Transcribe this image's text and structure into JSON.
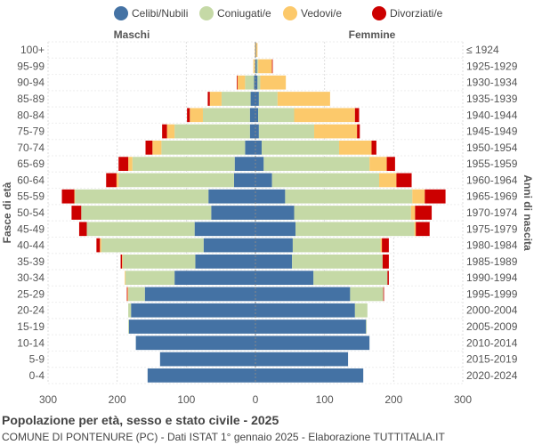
{
  "chart_data": {
    "type": "bar",
    "orientation": "horizontal-population-pyramid",
    "legend": {
      "placement": "top",
      "items": [
        {
          "label": "Celibi/Nubili",
          "color": "#4472a4"
        },
        {
          "label": "Coniugati/e",
          "color": "#c5d9a6"
        },
        {
          "label": "Vedovi/e",
          "color": "#fcc96b"
        },
        {
          "label": "Divorziati/e",
          "color": "#cc0000"
        }
      ]
    },
    "left_label": "Maschi",
    "right_label": "Femmine",
    "ylabel_left": "Fasce di età",
    "ylabel_right": "Anni di nascita",
    "xlim": [
      -300,
      300
    ],
    "x_ticks": [
      -300,
      -200,
      -100,
      0,
      100,
      200,
      300
    ],
    "x_tick_labels": [
      "300",
      "200",
      "100",
      "0",
      "100",
      "200",
      "300"
    ],
    "grid": true,
    "categories": [
      "100+",
      "95-99",
      "90-94",
      "85-89",
      "80-84",
      "75-79",
      "70-74",
      "65-69",
      "60-64",
      "55-59",
      "50-54",
      "45-49",
      "40-44",
      "35-39",
      "30-34",
      "25-29",
      "20-24",
      "15-19",
      "10-14",
      "5-9",
      "0-4"
    ],
    "birth_years": [
      "≤ 1924",
      "1925-1929",
      "1930-1934",
      "1935-1939",
      "1940-1944",
      "1945-1949",
      "1950-1954",
      "1955-1959",
      "1960-1964",
      "1965-1969",
      "1970-1974",
      "1975-1979",
      "1980-1984",
      "1985-1989",
      "1990-1994",
      "1995-1999",
      "2000-2004",
      "2005-2009",
      "2010-2014",
      "2015-2019",
      "2020-2024"
    ],
    "series_male": [
      {
        "name": "Celibi/Nubili",
        "values": [
          0,
          0,
          2,
          7,
          8,
          8,
          15,
          30,
          31,
          68,
          64,
          88,
          75,
          87,
          117,
          160,
          180,
          183,
          173,
          138,
          156
        ]
      },
      {
        "name": "Coniugati/e",
        "values": [
          0,
          1,
          13,
          42,
          68,
          109,
          121,
          148,
          167,
          193,
          188,
          156,
          148,
          105,
          71,
          24,
          4,
          1,
          0,
          0,
          0
        ]
      },
      {
        "name": "Vedovi/e",
        "values": [
          1,
          2,
          11,
          17,
          19,
          11,
          13,
          6,
          3,
          1,
          0,
          0,
          2,
          1,
          1,
          1,
          0,
          0,
          0,
          0,
          0
        ]
      },
      {
        "name": "Divorziati/e",
        "values": [
          0,
          0,
          1,
          3,
          4,
          7,
          10,
          14,
          15,
          18,
          14,
          11,
          5,
          2,
          0,
          1,
          0,
          0,
          0,
          0,
          0
        ]
      }
    ],
    "series_female": [
      {
        "name": "Celibi/Nubili",
        "values": [
          1,
          2,
          3,
          5,
          4,
          5,
          9,
          12,
          24,
          43,
          56,
          58,
          54,
          53,
          84,
          137,
          144,
          160,
          165,
          134,
          156
        ]
      },
      {
        "name": "Coniugati/e",
        "values": [
          0,
          2,
          4,
          27,
          52,
          80,
          112,
          153,
          155,
          184,
          169,
          172,
          127,
          131,
          107,
          48,
          18,
          1,
          0,
          0,
          0
        ]
      },
      {
        "name": "Vedovi/e",
        "values": [
          2,
          20,
          37,
          76,
          88,
          62,
          47,
          25,
          25,
          18,
          6,
          2,
          2,
          0,
          0,
          0,
          0,
          0,
          0,
          0,
          0
        ]
      },
      {
        "name": "Divorziati/e",
        "values": [
          0,
          1,
          0,
          0,
          6,
          4,
          7,
          12,
          22,
          30,
          24,
          20,
          10,
          9,
          2,
          1,
          0,
          0,
          0,
          0,
          0
        ]
      }
    ]
  },
  "footer": {
    "title": "Popolazione per età, sesso e stato civile - 2025",
    "subtitle": "COMUNE DI PONTENURE (PC) - Dati ISTAT 1° gennaio 2025 - Elaborazione TUTTITALIA.IT"
  }
}
